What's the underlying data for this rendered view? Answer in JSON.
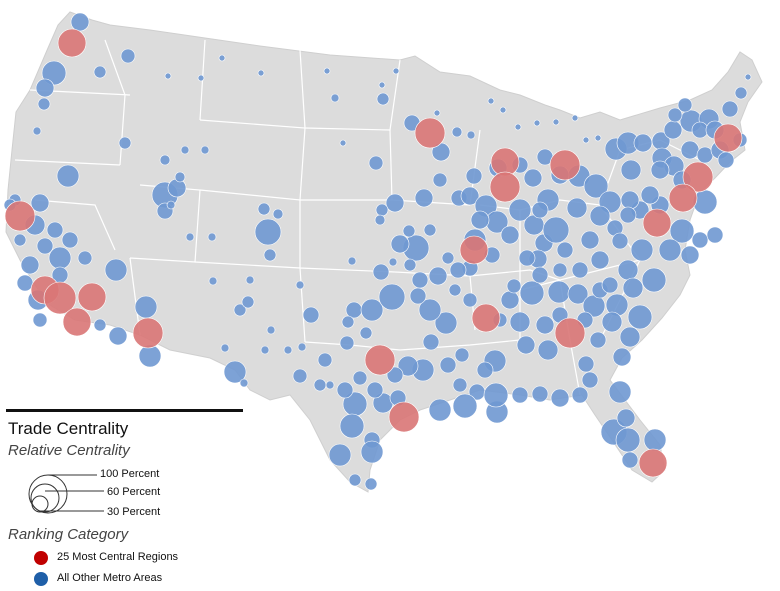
{
  "legend": {
    "title": "Trade Centrality",
    "size_title": "Relative Centrality",
    "size_labels": [
      "100 Percent",
      "60 Percent",
      "30 Percent"
    ],
    "category_title": "Ranking Category",
    "categories": [
      {
        "label": "25 Most Central Regions",
        "color": "#c00000"
      },
      {
        "label": "All Other Metro Areas",
        "color": "#1f5fa8"
      }
    ]
  },
  "colors": {
    "land": "#dcdcdc",
    "state_border": "#ffffff",
    "central_bubble": "#d97575",
    "other_bubble": "#6f98d2"
  }
}
